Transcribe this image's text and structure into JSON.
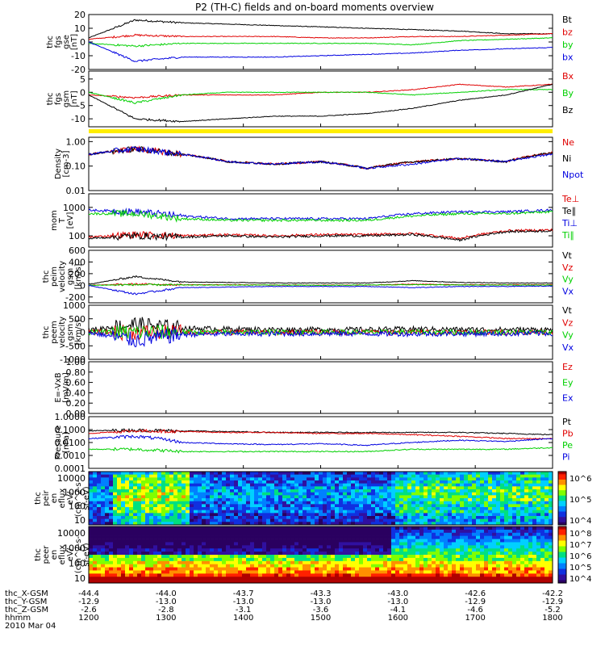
{
  "title": "P2 (TH-C) fields and on-board moments overview",
  "colors": {
    "black": "#000000",
    "red": "#e00000",
    "green": "#00d000",
    "blue": "#0000e0",
    "yellow": "#ffee00"
  },
  "chart_data": {
    "type": "line",
    "time_labels": [
      "1200",
      "1300",
      "1400",
      "1500",
      "1600",
      "1700",
      "1800"
    ],
    "panels": [
      {
        "id": "fgs-gse",
        "ylabel": [
          "thc",
          "fgs",
          "gse",
          "[nT]"
        ],
        "scale": "linear",
        "ylim": [
          -20,
          20
        ],
        "yticks": [
          "20",
          "10",
          "0",
          "-10",
          "-20"
        ],
        "series": [
          {
            "name": "Bt",
            "color": "black",
            "values": [
              3,
              16,
              14,
              13,
              12,
              11,
              10,
              9,
              8,
              6,
              6
            ]
          },
          {
            "name": "bz",
            "color": "red",
            "values": [
              2,
              5,
              4,
              4,
              4,
              3,
              3,
              4,
              4,
              5,
              6
            ]
          },
          {
            "name": "by",
            "color": "green",
            "values": [
              -1,
              -3,
              -1,
              -1,
              -1,
              -1,
              -1,
              -2,
              1,
              2,
              3
            ]
          },
          {
            "name": "bx",
            "color": "blue",
            "values": [
              0,
              -14,
              -11,
              -11,
              -11,
              -10,
              -9,
              -8,
              -6,
              -5,
              -4
            ]
          }
        ]
      },
      {
        "id": "fgs-gsm",
        "ylabel": [
          "thc",
          "fgs",
          "gsm",
          "[nT]"
        ],
        "scale": "linear",
        "ylim": [
          -13,
          8
        ],
        "yticks": [
          "5",
          "0",
          "-5",
          "-10"
        ],
        "series": [
          {
            "name": "Bx",
            "color": "red",
            "values": [
              -1,
              -2,
              -1,
              -1,
              -1,
              0,
              0,
              1,
              3,
              2,
              3
            ]
          },
          {
            "name": "By",
            "color": "green",
            "values": [
              0,
              -4,
              -1,
              0,
              0,
              0,
              0,
              -1,
              0,
              1,
              1
            ]
          },
          {
            "name": "Bz",
            "color": "black",
            "values": [
              -1,
              -10,
              -11,
              -10,
              -9,
              -9,
              -8,
              -6,
              -3,
              -1,
              3
            ]
          }
        ]
      },
      {
        "id": "density",
        "ylabel": [
          "Density",
          "[cm-3]"
        ],
        "scale": "log",
        "ylim": [
          0.01,
          1.5
        ],
        "yticks": [
          "1.00",
          "0.10",
          "0.01"
        ],
        "series": [
          {
            "name": "Ne",
            "color": "red",
            "values": [
              0.3,
              0.5,
              0.3,
              0.15,
              0.12,
              0.15,
              0.08,
              0.15,
              0.2,
              0.15,
              0.35
            ]
          },
          {
            "name": "Ni",
            "color": "black",
            "values": [
              0.3,
              0.5,
              0.3,
              0.15,
              0.12,
              0.15,
              0.08,
              0.15,
              0.2,
              0.15,
              0.35
            ]
          },
          {
            "name": "Npot",
            "color": "blue",
            "values": [
              0.3,
              0.5,
              0.3,
              0.15,
              0.12,
              0.15,
              0.08,
              0.12,
              0.2,
              0.15,
              0.3
            ]
          }
        ]
      },
      {
        "id": "mom-temp",
        "ylabel": [
          "mom",
          "T",
          "[eV]"
        ],
        "scale": "log",
        "ylim": [
          40,
          3000
        ],
        "yticks": [
          "1000",
          "100"
        ],
        "series": [
          {
            "name": "Te⊥",
            "color": "red",
            "values": [
              90,
              110,
              100,
              110,
              100,
              110,
              110,
              120,
              80,
              150,
              160
            ]
          },
          {
            "name": "Te∥",
            "color": "black",
            "values": [
              80,
              100,
              90,
              100,
              90,
              100,
              100,
              110,
              70,
              140,
              150
            ]
          },
          {
            "name": "Ti⊥",
            "color": "blue",
            "values": [
              800,
              700,
              500,
              400,
              400,
              400,
              400,
              600,
              700,
              700,
              800
            ]
          },
          {
            "name": "Ti∥",
            "color": "green",
            "values": [
              600,
              600,
              400,
              350,
              350,
              350,
              350,
              500,
              600,
              600,
              700
            ]
          }
        ]
      },
      {
        "id": "peim-velocity",
        "ylabel": [
          "thc",
          "peim",
          "velocity",
          "gsm",
          "[km/s]"
        ],
        "scale": "linear",
        "ylim": [
          -300,
          600
        ],
        "yticks": [
          "600",
          "400",
          "200",
          "0",
          "-200"
        ],
        "series": [
          {
            "name": "Vt",
            "color": "black",
            "values": [
              20,
              150,
              60,
              50,
              40,
              40,
              40,
              80,
              50,
              40,
              40
            ]
          },
          {
            "name": "Vz",
            "color": "red",
            "values": [
              0,
              20,
              10,
              10,
              5,
              5,
              5,
              20,
              10,
              10,
              10
            ]
          },
          {
            "name": "Vy",
            "color": "green",
            "values": [
              0,
              10,
              5,
              5,
              5,
              0,
              5,
              10,
              5,
              5,
              5
            ]
          },
          {
            "name": "Vx",
            "color": "blue",
            "values": [
              0,
              -150,
              -40,
              -30,
              -20,
              -20,
              -20,
              -40,
              -20,
              -20,
              -10
            ]
          }
        ]
      },
      {
        "id": "peem-velocity",
        "ylabel": [
          "thc",
          "peem",
          "velocity",
          "gsm",
          "[km/s]"
        ],
        "scale": "linear",
        "ylim": [
          -1000,
          1000
        ],
        "yticks": [
          "1000",
          "500",
          "0",
          "-500",
          "-1000"
        ],
        "series": [
          {
            "name": "Vt",
            "color": "black",
            "values": [
              80,
              300,
              150,
              120,
              100,
              100,
              100,
              120,
              100,
              100,
              100
            ]
          },
          {
            "name": "Vz",
            "color": "red",
            "values": [
              0,
              0,
              0,
              0,
              0,
              0,
              0,
              0,
              0,
              0,
              0
            ]
          },
          {
            "name": "Vy",
            "color": "green",
            "values": [
              0,
              0,
              0,
              0,
              0,
              0,
              0,
              0,
              0,
              0,
              0
            ]
          },
          {
            "name": "Vx",
            "color": "blue",
            "values": [
              0,
              -300,
              -80,
              -60,
              -50,
              -50,
              -50,
              -60,
              -50,
              -50,
              -40
            ]
          }
        ]
      },
      {
        "id": "e-vxb",
        "ylabel": [
          "E=-VxB",
          "[mV/m]"
        ],
        "scale": "linear",
        "ylim": [
          0,
          1
        ],
        "yticks": [
          "1.00",
          "0.80",
          "0.60",
          "0.40",
          "0.20",
          "0.00"
        ],
        "series": [
          {
            "name": "Ez",
            "color": "red",
            "values": []
          },
          {
            "name": "Ey",
            "color": "green",
            "values": []
          },
          {
            "name": "Ex",
            "color": "blue",
            "values": []
          }
        ]
      },
      {
        "id": "pressure",
        "ylabel": [
          "Pressure",
          "[nPa]"
        ],
        "scale": "log",
        "ylim": [
          0.0001,
          1
        ],
        "yticks": [
          "1.0000",
          "0.1000",
          "0.0100",
          "0.0010",
          "0.0001"
        ],
        "series": [
          {
            "name": "Pt",
            "color": "black",
            "values": [
              0.08,
              0.09,
              0.08,
              0.07,
              0.06,
              0.06,
              0.06,
              0.06,
              0.06,
              0.05,
              0.04
            ]
          },
          {
            "name": "Pb",
            "color": "red",
            "values": [
              0.05,
              0.08,
              0.07,
              0.06,
              0.06,
              0.05,
              0.05,
              0.04,
              0.03,
              0.02,
              0.02
            ]
          },
          {
            "name": "Pe",
            "color": "green",
            "values": [
              0.003,
              0.003,
              0.002,
              0.002,
              0.002,
              0.002,
              0.002,
              0.003,
              0.003,
              0.003,
              0.004
            ]
          },
          {
            "name": "Pi",
            "color": "blue",
            "values": [
              0.02,
              0.03,
              0.01,
              0.008,
              0.007,
              0.008,
              0.006,
              0.01,
              0.015,
              0.012,
              0.02
            ]
          }
        ]
      }
    ],
    "spectrograms": [
      {
        "id": "peir-eflux",
        "ylabel": [
          "thc",
          "peir",
          "en",
          "eflux",
          "eV/",
          "(cm^2-s-",
          "sr-eV)"
        ],
        "yticks": [
          "10000",
          "1000",
          "100",
          "10"
        ],
        "colorbar_ticks": [
          "10^6",
          "10^5",
          "10^4"
        ]
      },
      {
        "id": "peer-eflux",
        "ylabel": [
          "thc",
          "peer",
          "en",
          "eflux",
          "eV/",
          "(cm^2-s-",
          "sr-eV)"
        ],
        "yticks": [
          "10000",
          "1000",
          "100",
          "10"
        ],
        "colorbar_ticks": [
          "10^8",
          "10^7",
          "10^6",
          "10^5",
          "10^4"
        ]
      }
    ],
    "ephemeris": [
      {
        "label": "thc_X-GSM",
        "values": [
          "-44.4",
          "-44.0",
          "-43.7",
          "-43.3",
          "-43.0",
          "-42.6",
          "-42.2"
        ]
      },
      {
        "label": "thc_Y-GSM",
        "values": [
          "-12.9",
          "-13.0",
          "-13.0",
          "-13.0",
          "-13.0",
          "-12.9",
          "-12.9"
        ]
      },
      {
        "label": "thc_Z-GSM",
        "values": [
          "-2.6",
          "-2.8",
          "-3.1",
          "-3.6",
          "-4.1",
          "-4.6",
          "-5.2"
        ]
      },
      {
        "label": "hhmm",
        "values": [
          "1200",
          "1300",
          "1400",
          "1500",
          "1600",
          "1700",
          "1800"
        ]
      }
    ],
    "date_label": "2010 Mar 04"
  }
}
